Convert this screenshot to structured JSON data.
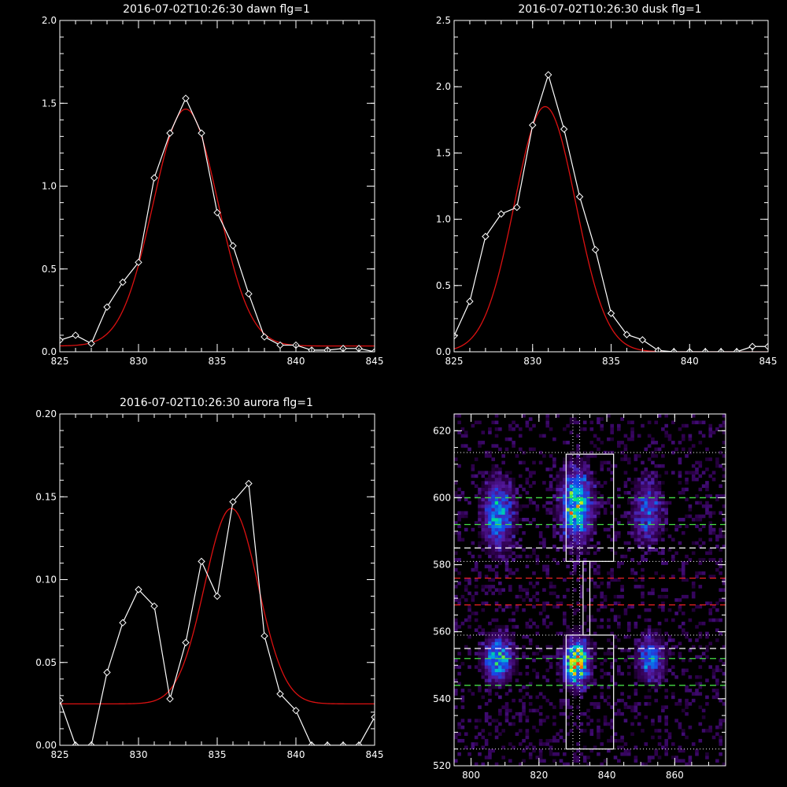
{
  "chart_data": [
    {
      "type": "line",
      "title": "2016-07-02T10:26:30 dawn flg=1",
      "xlabel": "",
      "ylabel": "",
      "xlim": [
        825,
        845
      ],
      "ylim": [
        0,
        2.0
      ],
      "xticks": [
        825,
        830,
        835,
        840,
        845
      ],
      "yticks": [
        0.0,
        0.5,
        1.0,
        1.5,
        2.0
      ],
      "xtick_labels": [
        "825",
        "830",
        "835",
        "840",
        "845"
      ],
      "ytick_labels": [
        "0.0",
        "0.5",
        "1.0",
        "1.5",
        "2.0"
      ],
      "series": [
        {
          "color": "#ffffff",
          "marker": "diamond",
          "x": [
            825,
            826,
            827,
            828,
            829,
            830,
            831,
            832,
            833,
            834,
            835,
            836,
            837,
            838,
            839,
            840,
            841,
            842,
            843,
            844,
            845
          ],
          "y": [
            0.07,
            0.1,
            0.05,
            0.27,
            0.42,
            0.54,
            1.05,
            1.32,
            1.53,
            1.32,
            0.84,
            0.64,
            0.35,
            0.09,
            0.04,
            0.04,
            0.01,
            0.01,
            0.02,
            0.02,
            0.0
          ]
        },
        {
          "color": "#dd1111",
          "gaussian": {
            "amplitude": 1.43,
            "center": 833.0,
            "sigma": 2.05,
            "baseline": 0.035
          }
        }
      ]
    },
    {
      "type": "line",
      "title": "2016-07-02T10:26:30 dusk flg=1",
      "xlabel": "",
      "ylabel": "",
      "xlim": [
        825,
        845
      ],
      "ylim": [
        0,
        2.5
      ],
      "xticks": [
        825,
        830,
        835,
        840,
        845
      ],
      "yticks": [
        0.0,
        0.5,
        1.0,
        1.5,
        2.0,
        2.5
      ],
      "xtick_labels": [
        "825",
        "830",
        "835",
        "840",
        "845"
      ],
      "ytick_labels": [
        "0.0",
        "0.5",
        "1.0",
        "1.5",
        "2.0",
        "2.5"
      ],
      "series": [
        {
          "color": "#ffffff",
          "marker": "diamond",
          "x": [
            825,
            826,
            827,
            828,
            829,
            830,
            831,
            832,
            833,
            834,
            835,
            836,
            837,
            838,
            839,
            840,
            841,
            842,
            843,
            844,
            845
          ],
          "y": [
            0.12,
            0.38,
            0.87,
            1.04,
            1.09,
            1.71,
            2.09,
            1.68,
            1.17,
            0.77,
            0.29,
            0.13,
            0.09,
            0.01,
            0.0,
            0.0,
            0.0,
            0.0,
            0.0,
            0.04,
            0.04
          ]
        },
        {
          "color": "#dd1111",
          "gaussian": {
            "amplitude": 1.85,
            "center": 830.8,
            "sigma": 1.95,
            "baseline": 0.0
          }
        }
      ]
    },
    {
      "type": "line",
      "title": "2016-07-02T10:26:30 aurora flg=1",
      "xlabel": "",
      "ylabel": "",
      "xlim": [
        825,
        845
      ],
      "ylim": [
        0,
        0.2
      ],
      "xticks": [
        825,
        830,
        835,
        840,
        845
      ],
      "yticks": [
        0.0,
        0.05,
        0.1,
        0.15,
        0.2
      ],
      "xtick_labels": [
        "825",
        "830",
        "835",
        "840",
        "845"
      ],
      "ytick_labels": [
        "0.00",
        "0.05",
        "0.10",
        "0.15",
        "0.20"
      ],
      "series": [
        {
          "color": "#ffffff",
          "marker": "diamond",
          "x": [
            825,
            826,
            827,
            828,
            829,
            830,
            831,
            832,
            833,
            834,
            835,
            836,
            837,
            838,
            839,
            840,
            841,
            842,
            843,
            844,
            845
          ],
          "y": [
            0.027,
            0.0,
            0.0,
            0.044,
            0.074,
            0.094,
            0.084,
            0.028,
            0.062,
            0.111,
            0.09,
            0.147,
            0.158,
            0.066,
            0.031,
            0.021,
            0.0,
            0.0,
            0.0,
            0.0,
            0.017
          ]
        },
        {
          "color": "#dd1111",
          "gaussian": {
            "amplitude": 0.118,
            "center": 835.9,
            "sigma": 1.7,
            "baseline": 0.025
          }
        }
      ]
    },
    {
      "type": "heatmap",
      "title": "",
      "xlabel": "",
      "ylabel": "",
      "xlim": [
        795,
        875
      ],
      "ylim": [
        520,
        625
      ],
      "xticks": [
        800,
        820,
        840,
        860
      ],
      "yticks": [
        520,
        540,
        560,
        580,
        600,
        620
      ],
      "xtick_labels": [
        "800",
        "820",
        "840",
        "860"
      ],
      "ytick_labels": [
        "520",
        "540",
        "560",
        "580",
        "600",
        "620"
      ],
      "blobs": [
        {
          "x": 808,
          "y": 595,
          "sx": 3.0,
          "sy": 7.0,
          "peak": 0.55
        },
        {
          "x": 831,
          "y": 598,
          "sx": 3.0,
          "sy": 7.0,
          "peak": 0.78
        },
        {
          "x": 852,
          "y": 596,
          "sx": 3.0,
          "sy": 6.5,
          "peak": 0.38
        },
        {
          "x": 808,
          "y": 552,
          "sx": 2.7,
          "sy": 4.5,
          "peak": 0.68
        },
        {
          "x": 831,
          "y": 551,
          "sx": 2.4,
          "sy": 4.5,
          "peak": 1.0
        },
        {
          "x": 853,
          "y": 552,
          "sx": 2.7,
          "sy": 4.5,
          "peak": 0.48
        }
      ],
      "boxes": [
        {
          "x0": 828,
          "x1": 842,
          "y0": 581,
          "y1": 613,
          "color": "#ffffff"
        },
        {
          "x0": 828,
          "x1": 842,
          "y0": 525,
          "y1": 559,
          "color": "#ffffff"
        },
        {
          "x0": 833,
          "x1": 835,
          "y0": 559,
          "y1": 581,
          "color": "#ffffff"
        }
      ],
      "hlines": [
        {
          "y": 613.5,
          "style": "dotted",
          "color": "#ffffff"
        },
        {
          "y": 600,
          "style": "dashed",
          "color": "#44dd44"
        },
        {
          "y": 592,
          "style": "dashed",
          "color": "#44dd44"
        },
        {
          "y": 585,
          "style": "dashed",
          "color": "#ffffff"
        },
        {
          "y": 581,
          "style": "dotted",
          "color": "#ffffff"
        },
        {
          "y": 576,
          "style": "dashed",
          "color": "#ee2222"
        },
        {
          "y": 568,
          "style": "dashed",
          "color": "#ee2222"
        },
        {
          "y": 559,
          "style": "dotted",
          "color": "#ffffff"
        },
        {
          "y": 555,
          "style": "dashed",
          "color": "#ffffff"
        },
        {
          "y": 552,
          "style": "dashed",
          "color": "#44dd44"
        },
        {
          "y": 544,
          "style": "dashed",
          "color": "#44dd44"
        },
        {
          "y": 525,
          "style": "dotted",
          "color": "#ffffff"
        }
      ],
      "vlines": [
        {
          "x": 830,
          "style": "dotted",
          "color": "#ffffff"
        },
        {
          "x": 832,
          "style": "dotted",
          "color": "#ffffff"
        }
      ]
    }
  ]
}
